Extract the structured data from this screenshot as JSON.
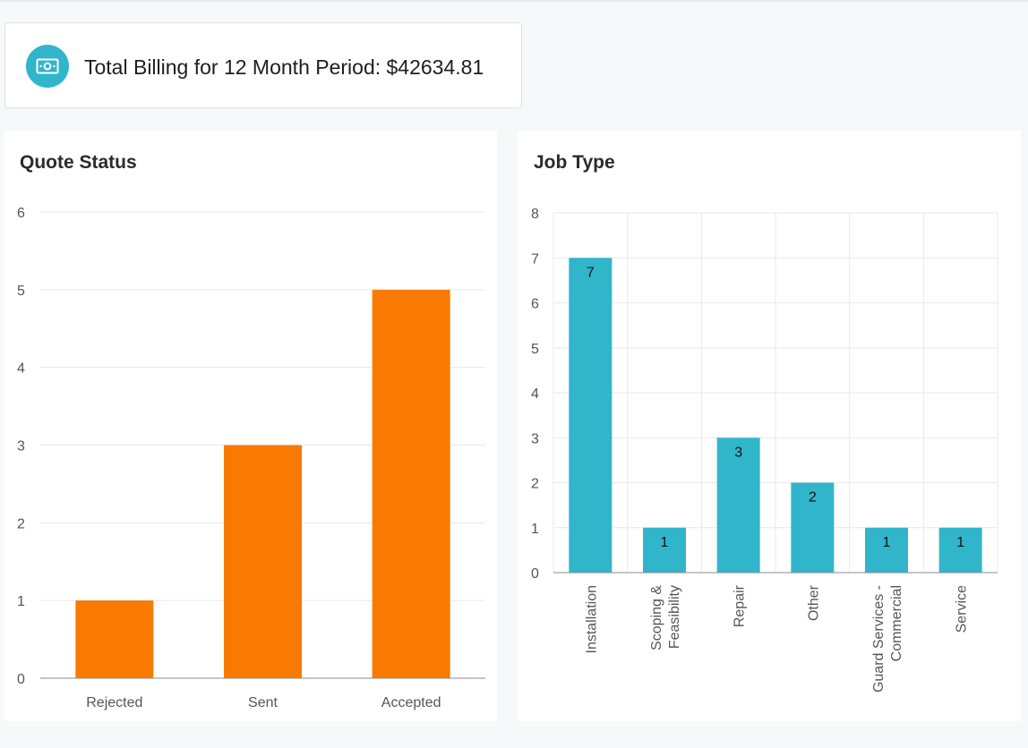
{
  "billing": {
    "label": "Total Billing for 12 Month Period: $42634.81",
    "icon": "money-icon"
  },
  "colors": {
    "quote_bar": "#f97a02",
    "job_bar": "#31b5cb",
    "icon_bg": "#31b5cb"
  },
  "chart_data": [
    {
      "type": "bar",
      "title": "Quote Status",
      "categories": [
        "Rejected",
        "Sent",
        "Accepted"
      ],
      "values": [
        1,
        3,
        5
      ],
      "xlabel": "",
      "ylabel": "",
      "ylim": [
        0,
        6
      ],
      "yticks": [
        "0",
        "1",
        "2",
        "3",
        "4",
        "5",
        "6"
      ],
      "grid": "horizontal",
      "data_labels": false
    },
    {
      "type": "bar",
      "title": "Job Type",
      "categories": [
        "Installation",
        "Scoping & Feasibility",
        "Repair",
        "Other",
        "Guard Services - Commercial",
        "Service"
      ],
      "category_lines": [
        [
          "Installation"
        ],
        [
          "Scoping &",
          "Feasibility"
        ],
        [
          "Repair"
        ],
        [
          "Other"
        ],
        [
          "Guard Services -",
          "Commercial"
        ],
        [
          "Service"
        ]
      ],
      "values": [
        7,
        1,
        3,
        2,
        1,
        1
      ],
      "xlabel": "",
      "ylabel": "",
      "ylim": [
        0,
        8
      ],
      "yticks": [
        "0",
        "1",
        "2",
        "3",
        "4",
        "5",
        "6",
        "7",
        "8"
      ],
      "grid": "both",
      "data_labels": true,
      "tick_label_rotation": -90
    }
  ]
}
